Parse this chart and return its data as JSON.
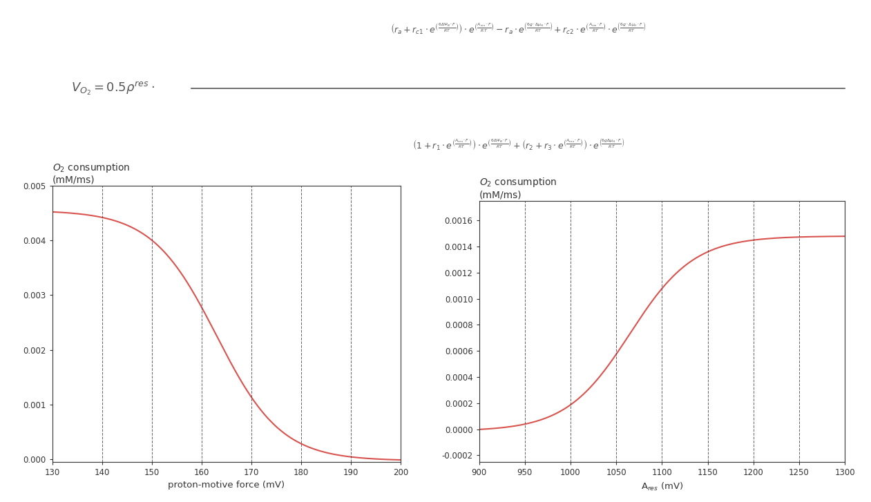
{
  "plot1": {
    "title_line1": "O$_2$ consumption",
    "title_line2": "(mM/ms)",
    "xlabel": "proton-motive force (mV)",
    "xlim": [
      130,
      200
    ],
    "ylim": [
      -5e-05,
      0.005
    ],
    "xticks": [
      130,
      140,
      150,
      160,
      170,
      180,
      190,
      200
    ],
    "yticks": [
      0.0,
      0.001,
      0.002,
      0.003,
      0.004,
      0.005
    ],
    "ytick_labels": [
      "0.000",
      "0.001",
      "0.002",
      "0.003",
      "0.004",
      "0.005"
    ],
    "vlines": [
      140,
      150,
      160,
      170,
      180,
      190
    ],
    "curve_color": "#d9534f",
    "curve_midpoint": 163,
    "curve_scale": 6.5,
    "curve_max": 0.00455,
    "curve_min": -3e-05
  },
  "plot2": {
    "title_line1": "O$_2$ consumption",
    "title_line2": "(mM/ms)",
    "xlabel": "A$_{res}$ (mV)",
    "xlim": [
      900,
      1300
    ],
    "ylim": [
      -0.00025,
      0.00175
    ],
    "xticks": [
      900,
      950,
      1000,
      1050,
      1100,
      1150,
      1200,
      1250,
      1300
    ],
    "yticks": [
      -0.0002,
      0.0,
      0.0002,
      0.0004,
      0.0006,
      0.0008,
      0.001,
      0.0012,
      0.0014,
      0.0016
    ],
    "ytick_labels": [
      "-0.0002",
      "0.0000",
      "0.0002",
      "0.0004",
      "0.0006",
      "0.0008",
      "0.0010",
      "0.0012",
      "0.0014",
      "0.0016"
    ],
    "vlines": [
      950,
      1000,
      1050,
      1100,
      1150,
      1200,
      1250
    ],
    "curve_color": "#d9534f",
    "curve_midpoint": 1065,
    "curve_scale": 35,
    "curve_max": 0.00148,
    "curve_min": -1.5e-05
  },
  "formula_color": "#555555",
  "axis_color": "#333333",
  "tick_color": "#333333",
  "bg_color": "#ffffff",
  "vline_color": "#444444",
  "title_fontsize": 10,
  "label_fontsize": 9.5,
  "tick_fontsize": 8.5
}
